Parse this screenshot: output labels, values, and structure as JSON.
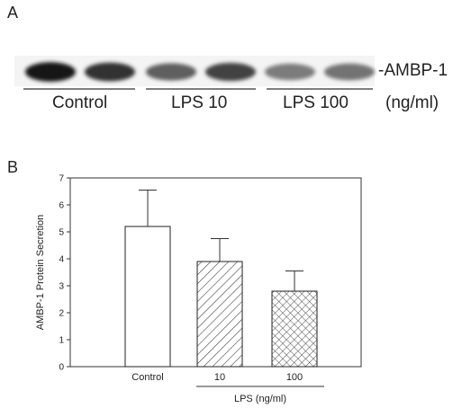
{
  "panel_a": {
    "letter": "A",
    "protein_label": "-AMBP-1",
    "groups": [
      {
        "label": "Control",
        "band_intensities": [
          0.95,
          0.8
        ]
      },
      {
        "label": "LPS 10",
        "band_intensities": [
          0.55,
          0.7
        ]
      },
      {
        "label": "LPS 100",
        "band_intensities": [
          0.4,
          0.45
        ]
      }
    ],
    "unit": "(ng/ml)"
  },
  "panel_b": {
    "letter": "B",
    "group_label": "LPS (ng/ml)"
  },
  "chart_data": {
    "type": "bar",
    "title": "",
    "xlabel": "",
    "ylabel": "AMBP-1 Protein Secretion",
    "categories": [
      "Control",
      "10",
      "100"
    ],
    "values": [
      5.2,
      3.9,
      2.8
    ],
    "errors": [
      1.35,
      0.85,
      0.75
    ],
    "bar_fills": [
      "open",
      "diagonal-hatch",
      "cross-hatch"
    ],
    "ylim": [
      0,
      7
    ],
    "yticks": [
      "0",
      "1",
      "2",
      "3",
      "4",
      "5",
      "6",
      "7"
    ],
    "grid": false,
    "colors": {
      "bar_edge": "#222222",
      "bar_fill": "#ffffff"
    }
  }
}
